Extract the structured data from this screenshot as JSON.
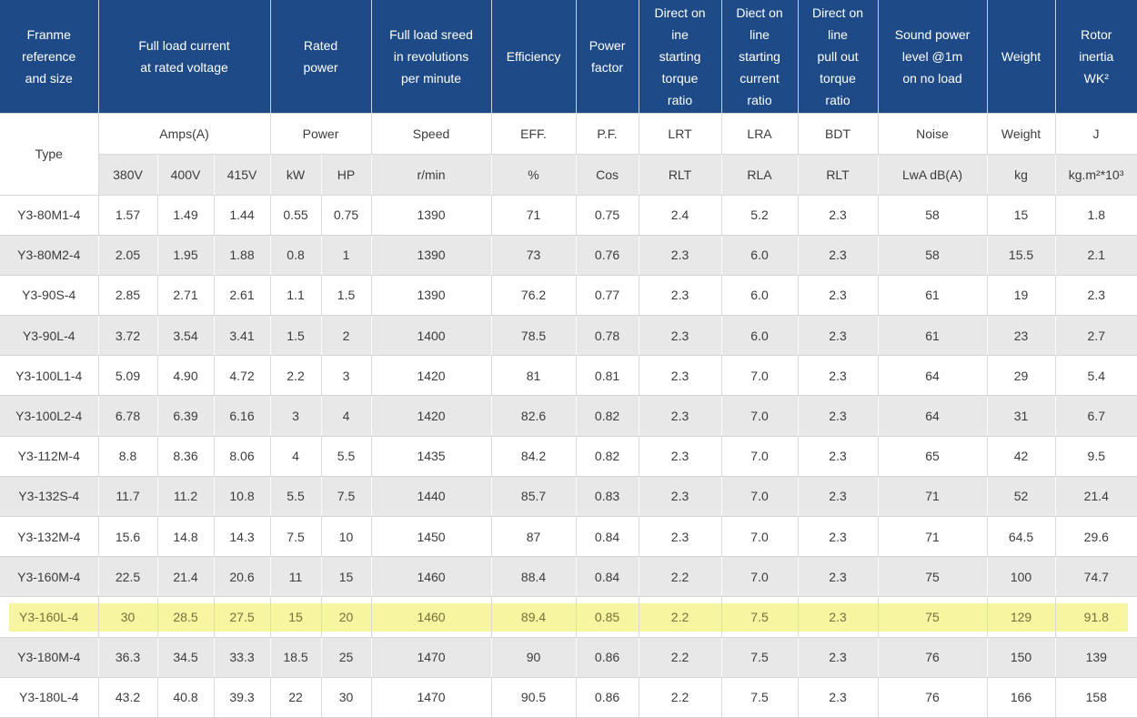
{
  "colors": {
    "header_bg": "#1E4B88",
    "header_text": "#FFFFFF",
    "stripe_bg": "#E8E8E8",
    "row_bg": "#FFFFFF",
    "highlight": "#F7F5A0",
    "body_text": "#3C3C3C"
  },
  "chart_data": {
    "type": "table",
    "layout": {
      "striped": true,
      "header_position": "top",
      "highlighted_row": "Y3-160L-4"
    },
    "header_groups": [
      {
        "label": "Franme\nreference\nand size",
        "span": 1
      },
      {
        "label": "Full load current\nat rated voltage",
        "span": 3
      },
      {
        "label": "Rated\npower",
        "span": 2
      },
      {
        "label": "Full load sreed\nin revolutions\nper minute",
        "span": 1
      },
      {
        "label": "Efficiency",
        "span": 1
      },
      {
        "label": "Power\nfactor",
        "span": 1
      },
      {
        "label": "Direct on\nine\nstarting\ntorque\nratio",
        "span": 1
      },
      {
        "label": "Diect on\nline\nstarting\ncurrent\nratio",
        "span": 1
      },
      {
        "label": "Direct on\nline\npull out\ntorque\nratio",
        "span": 1
      },
      {
        "label": "Sound power\nlevel @1m\non no load",
        "span": 1
      },
      {
        "label": "Weight",
        "span": 1
      },
      {
        "label": "Rotor\ninertia\nWK²",
        "span": 1
      }
    ],
    "subheader": {
      "type_label": "Type",
      "groups": [
        {
          "label": "Amps(A)",
          "span": 3
        },
        {
          "label": "Power",
          "span": 2
        },
        {
          "label": "Speed",
          "span": 1
        },
        {
          "label": "EFF.",
          "span": 1
        },
        {
          "label": "P.F.",
          "span": 1
        },
        {
          "label": "LRT",
          "span": 1
        },
        {
          "label": "LRA",
          "span": 1
        },
        {
          "label": "BDT",
          "span": 1
        },
        {
          "label": "Noise",
          "span": 1
        },
        {
          "label": "Weight",
          "span": 1
        },
        {
          "label": "J",
          "span": 1
        }
      ]
    },
    "units": [
      "380V",
      "400V",
      "415V",
      "kW",
      "HP",
      "r/min",
      "%",
      "Cos",
      "RLT",
      "RLA",
      "RLT",
      "LwA dB(A)",
      "kg",
      "kg.m²*10³"
    ],
    "rows": [
      {
        "type": "Y3-80M1-4",
        "highlighted": false,
        "values": [
          "1.57",
          "1.49",
          "1.44",
          "0.55",
          "0.75",
          "1390",
          "71",
          "0.75",
          "2.4",
          "5.2",
          "2.3",
          "58",
          "15",
          "1.8"
        ]
      },
      {
        "type": "Y3-80M2-4",
        "highlighted": false,
        "values": [
          "2.05",
          "1.95",
          "1.88",
          "0.8",
          "1",
          "1390",
          "73",
          "0.76",
          "2.3",
          "6.0",
          "2.3",
          "58",
          "15.5",
          "2.1"
        ]
      },
      {
        "type": "Y3-90S-4",
        "highlighted": false,
        "values": [
          "2.85",
          "2.71",
          "2.61",
          "1.1",
          "1.5",
          "1390",
          "76.2",
          "0.77",
          "2.3",
          "6.0",
          "2.3",
          "61",
          "19",
          "2.3"
        ]
      },
      {
        "type": "Y3-90L-4",
        "highlighted": false,
        "values": [
          "3.72",
          "3.54",
          "3.41",
          "1.5",
          "2",
          "1400",
          "78.5",
          "0.78",
          "2.3",
          "6.0",
          "2.3",
          "61",
          "23",
          "2.7"
        ]
      },
      {
        "type": "Y3-100L1-4",
        "highlighted": false,
        "values": [
          "5.09",
          "4.90",
          "4.72",
          "2.2",
          "3",
          "1420",
          "81",
          "0.81",
          "2.3",
          "7.0",
          "2.3",
          "64",
          "29",
          "5.4"
        ]
      },
      {
        "type": "Y3-100L2-4",
        "highlighted": false,
        "values": [
          "6.78",
          "6.39",
          "6.16",
          "3",
          "4",
          "1420",
          "82.6",
          "0.82",
          "2.3",
          "7.0",
          "2.3",
          "64",
          "31",
          "6.7"
        ]
      },
      {
        "type": "Y3-112M-4",
        "highlighted": false,
        "values": [
          "8.8",
          "8.36",
          "8.06",
          "4",
          "5.5",
          "1435",
          "84.2",
          "0.82",
          "2.3",
          "7.0",
          "2.3",
          "65",
          "42",
          "9.5"
        ]
      },
      {
        "type": "Y3-132S-4",
        "highlighted": false,
        "values": [
          "11.7",
          "11.2",
          "10.8",
          "5.5",
          "7.5",
          "1440",
          "85.7",
          "0.83",
          "2.3",
          "7.0",
          "2.3",
          "71",
          "52",
          "21.4"
        ]
      },
      {
        "type": "Y3-132M-4",
        "highlighted": false,
        "values": [
          "15.6",
          "14.8",
          "14.3",
          "7.5",
          "10",
          "1450",
          "87",
          "0.84",
          "2.3",
          "7.0",
          "2.3",
          "71",
          "64.5",
          "29.6"
        ]
      },
      {
        "type": "Y3-160M-4",
        "highlighted": false,
        "values": [
          "22.5",
          "21.4",
          "20.6",
          "11",
          "15",
          "1460",
          "88.4",
          "0.84",
          "2.2",
          "7.0",
          "2.3",
          "75",
          "100",
          "74.7"
        ]
      },
      {
        "type": "Y3-160L-4",
        "highlighted": true,
        "values": [
          "30",
          "28.5",
          "27.5",
          "15",
          "20",
          "1460",
          "89.4",
          "0.85",
          "2.2",
          "7.5",
          "2.3",
          "75",
          "129",
          "91.8"
        ]
      },
      {
        "type": "Y3-180M-4",
        "highlighted": false,
        "values": [
          "36.3",
          "34.5",
          "33.3",
          "18.5",
          "25",
          "1470",
          "90",
          "0.86",
          "2.2",
          "7.5",
          "2.3",
          "76",
          "150",
          "139"
        ]
      },
      {
        "type": "Y3-180L-4",
        "highlighted": false,
        "values": [
          "43.2",
          "40.8",
          "39.3",
          "22",
          "30",
          "1470",
          "90.5",
          "0.86",
          "2.2",
          "7.5",
          "2.3",
          "76",
          "166",
          "158"
        ]
      }
    ]
  }
}
